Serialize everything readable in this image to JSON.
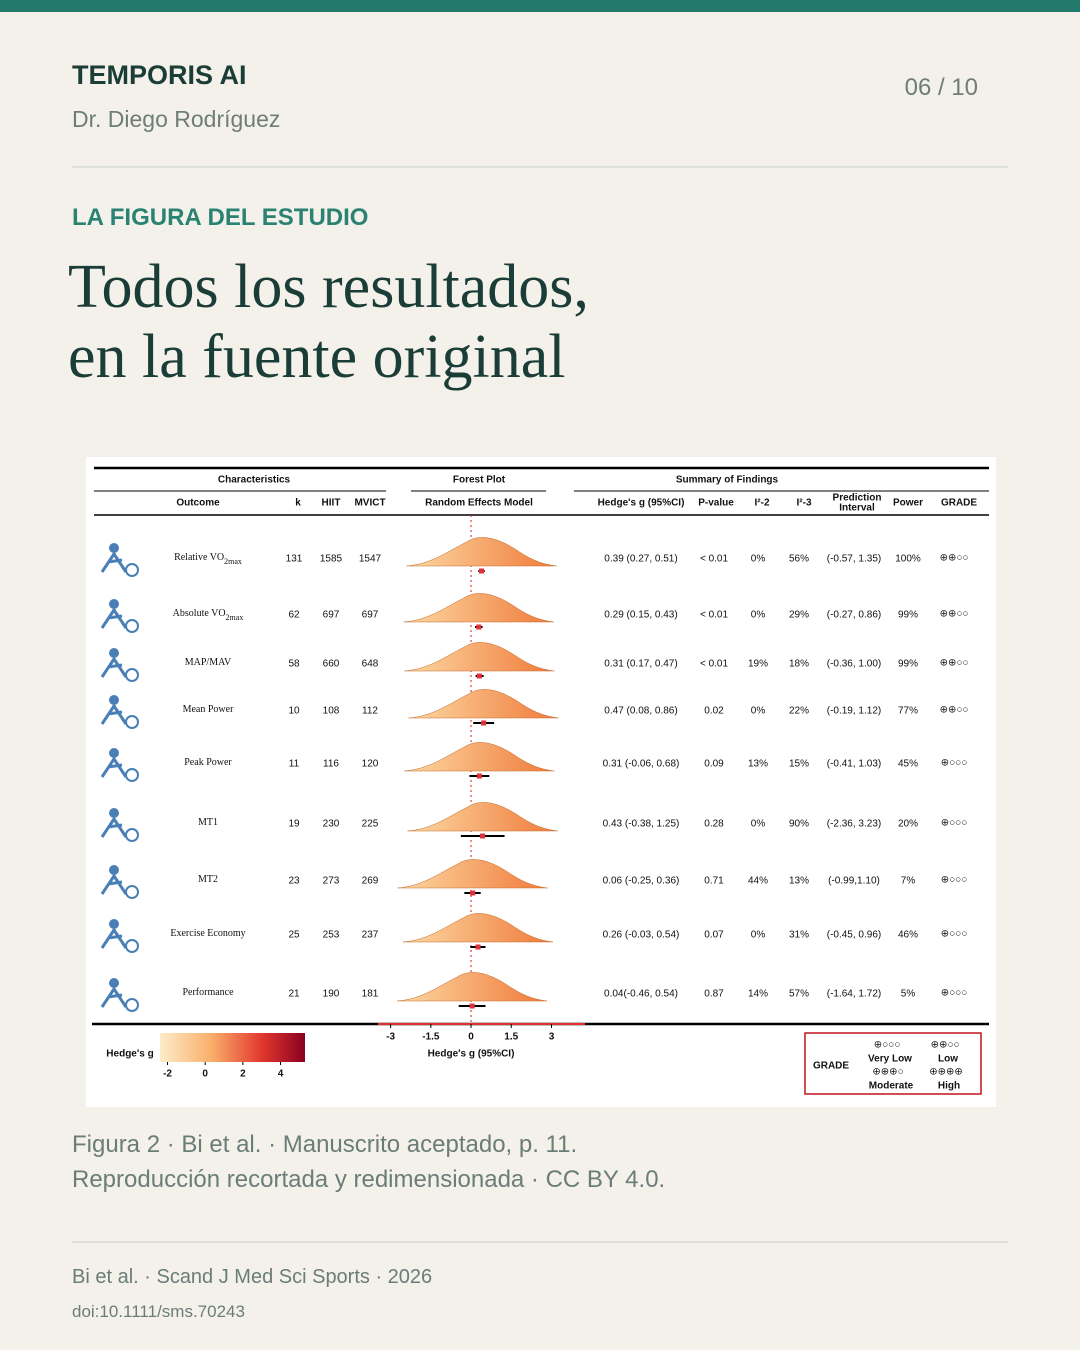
{
  "header": {
    "brand": "TEMPORIS AI",
    "author": "Dr. Diego Rodríguez",
    "page": "06 / 10"
  },
  "section_label": "LA FIGURA DEL ESTUDIO",
  "title": [
    "Todos los resultados,",
    "en la fuente original"
  ],
  "figure": {
    "groups": [
      "Characteristics",
      "Forest Plot",
      "Summary of Findings"
    ],
    "columns": {
      "outcome": "Outcome",
      "k": "k",
      "hiit": "HIIT",
      "mvict": "MVICT",
      "model": "Random Effects Model",
      "g_text": "Hedge's g (95%CI)",
      "p": "P-value",
      "i2_2": "I²-2",
      "i2_3": "I²-3",
      "pi": [
        "Prediction",
        "Interval"
      ],
      "power": "Power",
      "grade": "GRADE"
    },
    "rows": [
      {
        "outcome": "Relative VO",
        "sub": "2max",
        "k": 131,
        "hiit": 1585,
        "mvict": 1547,
        "g": 0.39,
        "ci": [
          0.27,
          0.51
        ],
        "g_text": "0.39 (0.27, 0.51)",
        "p": "< 0.01",
        "i2_2": "0%",
        "i2_3": "56%",
        "pi": "(-0.57, 1.35)",
        "power": "100%",
        "grade": "⊕⊕○○"
      },
      {
        "outcome": "Absolute VO",
        "sub": "2max",
        "k": 62,
        "hiit": 697,
        "mvict": 697,
        "g": 0.29,
        "ci": [
          0.15,
          0.43
        ],
        "g_text": "0.29 (0.15, 0.43)",
        "p": "< 0.01",
        "i2_2": "0%",
        "i2_3": "29%",
        "pi": "(-0.27, 0.86)",
        "power": "99%",
        "grade": "⊕⊕○○"
      },
      {
        "outcome": "MAP/MAV",
        "k": 58,
        "hiit": 660,
        "mvict": 648,
        "g": 0.31,
        "ci": [
          0.17,
          0.47
        ],
        "g_text": "0.31 (0.17, 0.47)",
        "p": "< 0.01",
        "i2_2": "19%",
        "i2_3": "18%",
        "pi": "(-0.36, 1.00)",
        "power": "99%",
        "grade": "⊕⊕○○"
      },
      {
        "outcome": "Mean Power",
        "k": 10,
        "hiit": 108,
        "mvict": 112,
        "g": 0.47,
        "ci": [
          0.08,
          0.86
        ],
        "g_text": "0.47 (0.08, 0.86)",
        "p": "0.02",
        "i2_2": "0%",
        "i2_3": "22%",
        "pi": "(-0.19, 1.12)",
        "power": "77%",
        "grade": "⊕⊕○○"
      },
      {
        "outcome": "Peak Power",
        "k": 11,
        "hiit": 116,
        "mvict": 120,
        "g": 0.31,
        "ci": [
          -0.06,
          0.68
        ],
        "g_text": "0.31 (-0.06, 0.68)",
        "p": "0.09",
        "i2_2": "13%",
        "i2_3": "15%",
        "pi": "(-0.41, 1.03)",
        "power": "45%",
        "grade": "⊕○○○"
      },
      {
        "outcome": "MT1",
        "k": 19,
        "hiit": 230,
        "mvict": 225,
        "g": 0.43,
        "ci": [
          -0.38,
          1.25
        ],
        "g_text": "0.43 (-0.38, 1.25)",
        "p": "0.28",
        "i2_2": "0%",
        "i2_3": "90%",
        "pi": "(-2.36, 3.23)",
        "power": "20%",
        "grade": "⊕○○○"
      },
      {
        "outcome": "MT2",
        "k": 23,
        "hiit": 273,
        "mvict": 269,
        "g": 0.06,
        "ci": [
          -0.25,
          0.36
        ],
        "g_text": "0.06 (-0.25, 0.36)",
        "p": "0.71",
        "i2_2": "44%",
        "i2_3": "13%",
        "pi": "(-0.99,1.10)",
        "power": "7%",
        "grade": "⊕○○○"
      },
      {
        "outcome": "Exercise Economy",
        "k": 25,
        "hiit": 253,
        "mvict": 237,
        "g": 0.26,
        "ci": [
          -0.03,
          0.54
        ],
        "g_text": "0.26 (-0.03, 0.54)",
        "p": "0.07",
        "i2_2": "0%",
        "i2_3": "31%",
        "pi": "(-0.45, 0.96)",
        "power": "46%",
        "grade": "⊕○○○"
      },
      {
        "outcome": "Performance",
        "k": 21,
        "hiit": 190,
        "mvict": 181,
        "g": 0.04,
        "ci": [
          -0.46,
          0.54
        ],
        "g_text": "0.04(-0.46, 0.54)",
        "p": "0.87",
        "i2_2": "14%",
        "i2_3": "57%",
        "pi": "(-1.64, 1.72)",
        "power": "5%",
        "grade": "⊕○○○"
      }
    ],
    "xlim": [
      -3.47,
      4.25
    ],
    "xticks": [
      -3,
      -1.5,
      0,
      1.5,
      3
    ],
    "xlabel": "Hedge's g (95%CI)",
    "colorbar": {
      "label": "Hedge's g",
      "lim": [
        -2.4,
        5.3
      ],
      "ticks": [
        -2,
        0,
        2,
        4
      ]
    },
    "grade_legend": {
      "title": "GRADE",
      "items": [
        {
          "symbol": "⊕○○○",
          "label": "Very Low"
        },
        {
          "symbol": "⊕⊕○○",
          "label": "Low"
        },
        {
          "symbol": "⊕⊕⊕○",
          "label": "Moderate"
        },
        {
          "symbol": "⊕⊕⊕⊕",
          "label": "High"
        }
      ]
    }
  },
  "caption": [
    "Figura 2 · Bi et al. · Manuscrito aceptado, p. 11.",
    "Reproducción recortada y redimensionada · CC BY 4.0."
  ],
  "footer": {
    "citation": "Bi et al. · Scand J Med Sci Sports · 2026",
    "doi": "doi:10.1111/sms.70243"
  }
}
